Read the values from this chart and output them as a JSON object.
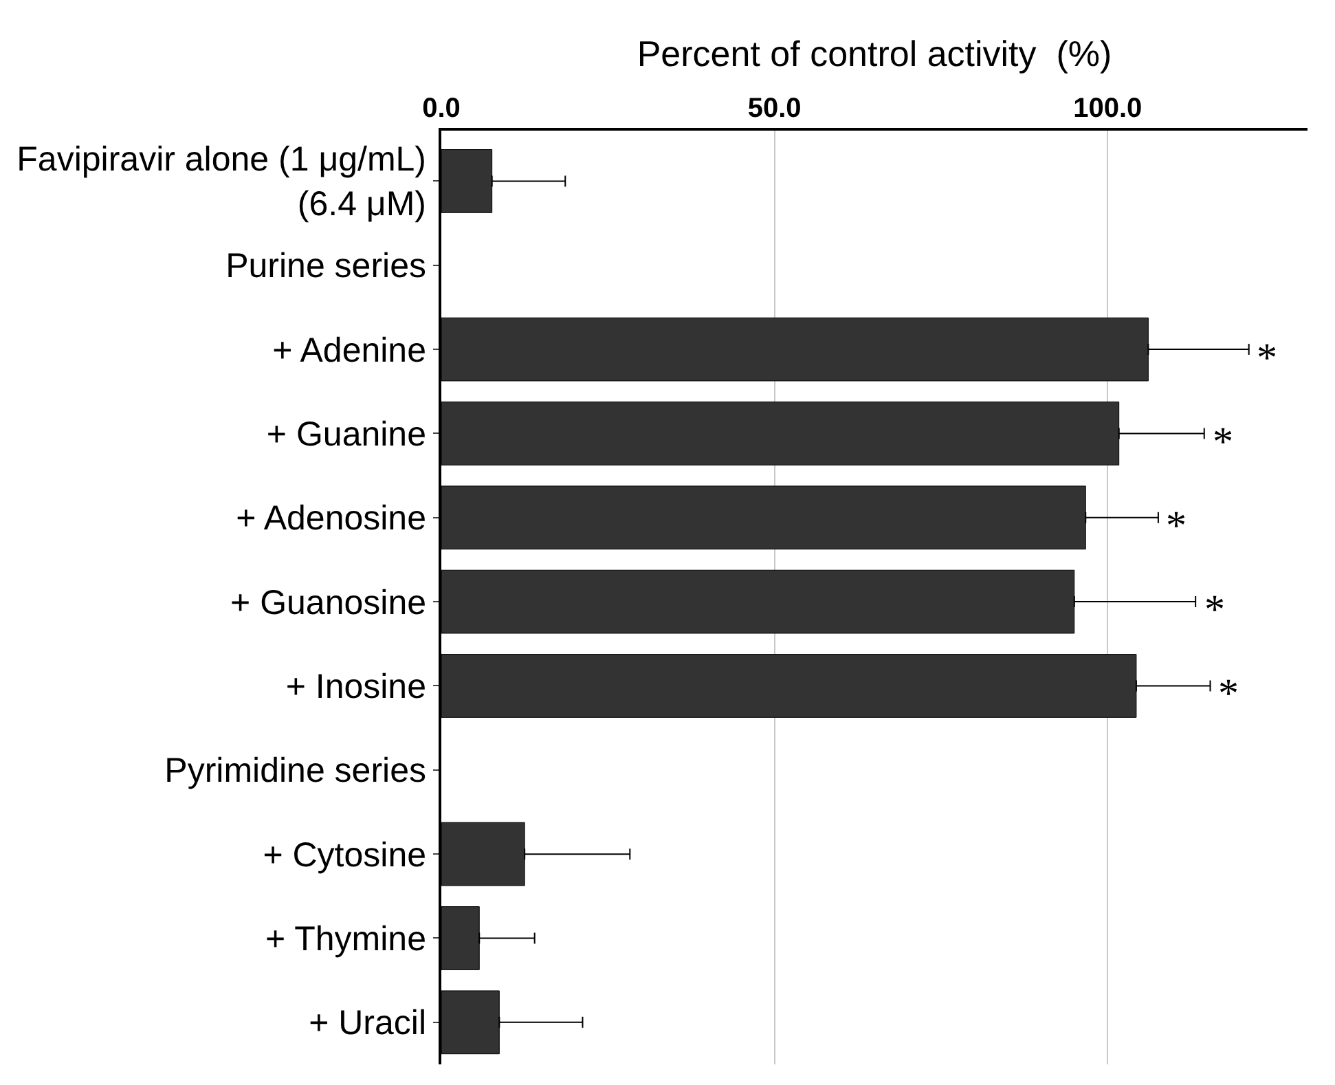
{
  "chart_data": {
    "type": "bar",
    "orientation": "horizontal",
    "xlabel": "Percent of control activity  (%)",
    "categories": [
      "Favipiravir alone (1 μg/mL)\n(6.4 μM)",
      "Purine series",
      "+ Adenine",
      "+ Guanine",
      "+ Adenosine",
      "+ Guanosine",
      "+ Inosine",
      "Pyrimidine series",
      "+ Cytosine",
      "+ Thymine",
      "+ Uracil"
    ],
    "series": [
      {
        "color": "#333333",
        "values": [
          7.6,
          null,
          106.1,
          101.7,
          96.7,
          95.0,
          104.3,
          null,
          12.5,
          5.7,
          8.7
        ],
        "value_labels": [
          null,
          null,
          "*",
          "*",
          "*",
          "*",
          "*",
          null,
          null,
          null,
          null
        ],
        "errors": [
          [
            7.6,
            18.6
          ],
          null,
          [
            106.1,
            121.2
          ],
          [
            101.7,
            114.5
          ],
          [
            96.7,
            107.6
          ],
          [
            95.0,
            113.2
          ],
          [
            104.3,
            115.4
          ],
          null,
          [
            12.5,
            28.3
          ],
          [
            5.7,
            14.0
          ],
          [
            8.7,
            21.2
          ]
        ]
      }
    ],
    "xlim": [
      0,
      130
    ],
    "xticks": [
      {
        "value": 0,
        "label": "0.0"
      },
      {
        "value": 50,
        "label": "50.0"
      },
      {
        "value": 100,
        "label": "100.0"
      }
    ],
    "grid": "x"
  }
}
